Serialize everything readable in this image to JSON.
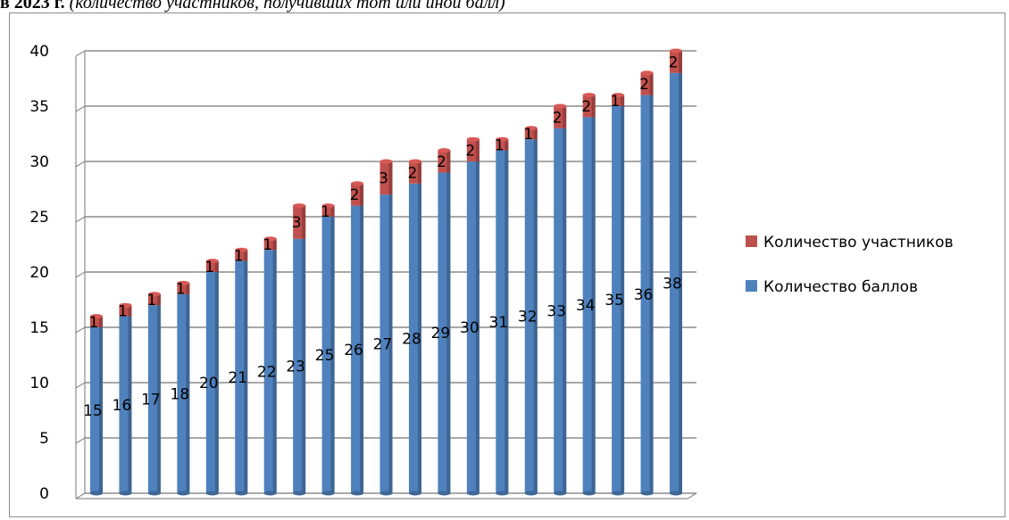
{
  "caption": {
    "bold_part": "в 2023 г.",
    "italic_part": "(количество участников, получивших тот или иной балл)"
  },
  "chart_data": {
    "type": "bar",
    "stacked": true,
    "categories": [
      "15",
      "16",
      "17",
      "18",
      "20",
      "21",
      "22",
      "23",
      "25",
      "26",
      "27",
      "28",
      "29",
      "30",
      "31",
      "32",
      "33",
      "34",
      "35",
      "36",
      "38"
    ],
    "series": [
      {
        "name": "Количество баллов",
        "color": "#4f81bd",
        "values": [
          15,
          16,
          17,
          18,
          20,
          21,
          22,
          23,
          25,
          26,
          27,
          28,
          29,
          30,
          31,
          32,
          33,
          34,
          35,
          36,
          38
        ]
      },
      {
        "name": "Количество участников",
        "color": "#c0504d",
        "values": [
          1,
          1,
          1,
          1,
          1,
          1,
          1,
          3,
          1,
          2,
          3,
          2,
          2,
          2,
          1,
          1,
          2,
          2,
          1,
          2,
          2
        ]
      }
    ],
    "ylim": [
      0,
      40
    ],
    "yticks": [
      "0",
      "5",
      "10",
      "15",
      "20",
      "25",
      "30",
      "35",
      "40"
    ],
    "grid": true,
    "legend_position": "right"
  }
}
